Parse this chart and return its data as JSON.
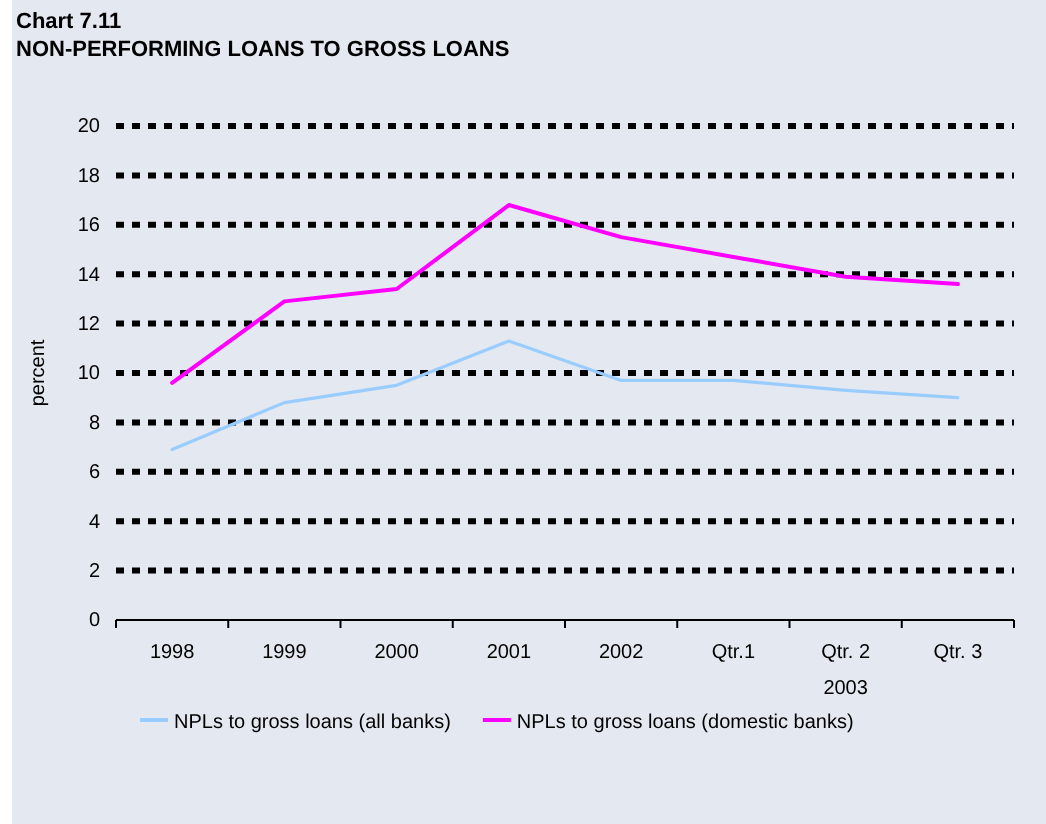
{
  "chart_data": {
    "type": "line",
    "title": "Chart 7.11",
    "subtitle": "NON-PERFORMING LOANS TO GROSS LOANS",
    "ylabel": "percent",
    "categories": [
      "1998",
      "1999",
      "2000",
      "2001",
      "2002",
      "Qtr.1",
      "Qtr. 2",
      "Qtr. 3"
    ],
    "series": [
      {
        "name": "NPLs to gross loans (all banks)",
        "color": "#99ccff",
        "values": [
          6.9,
          8.8,
          9.5,
          11.3,
          9.7,
          9.7,
          9.3,
          9.0
        ]
      },
      {
        "name": "NPLs to gross loans (domestic banks)",
        "color": "#ff00ff",
        "values": [
          9.6,
          12.9,
          13.4,
          16.8,
          15.5,
          14.7,
          13.9,
          13.6
        ]
      }
    ],
    "ylim": [
      0,
      20
    ],
    "yticks": [
      0,
      2,
      4,
      6,
      8,
      10,
      12,
      14,
      16,
      18,
      20
    ],
    "grid": "y",
    "legend": "bottom",
    "annotations": [
      "2003"
    ]
  }
}
